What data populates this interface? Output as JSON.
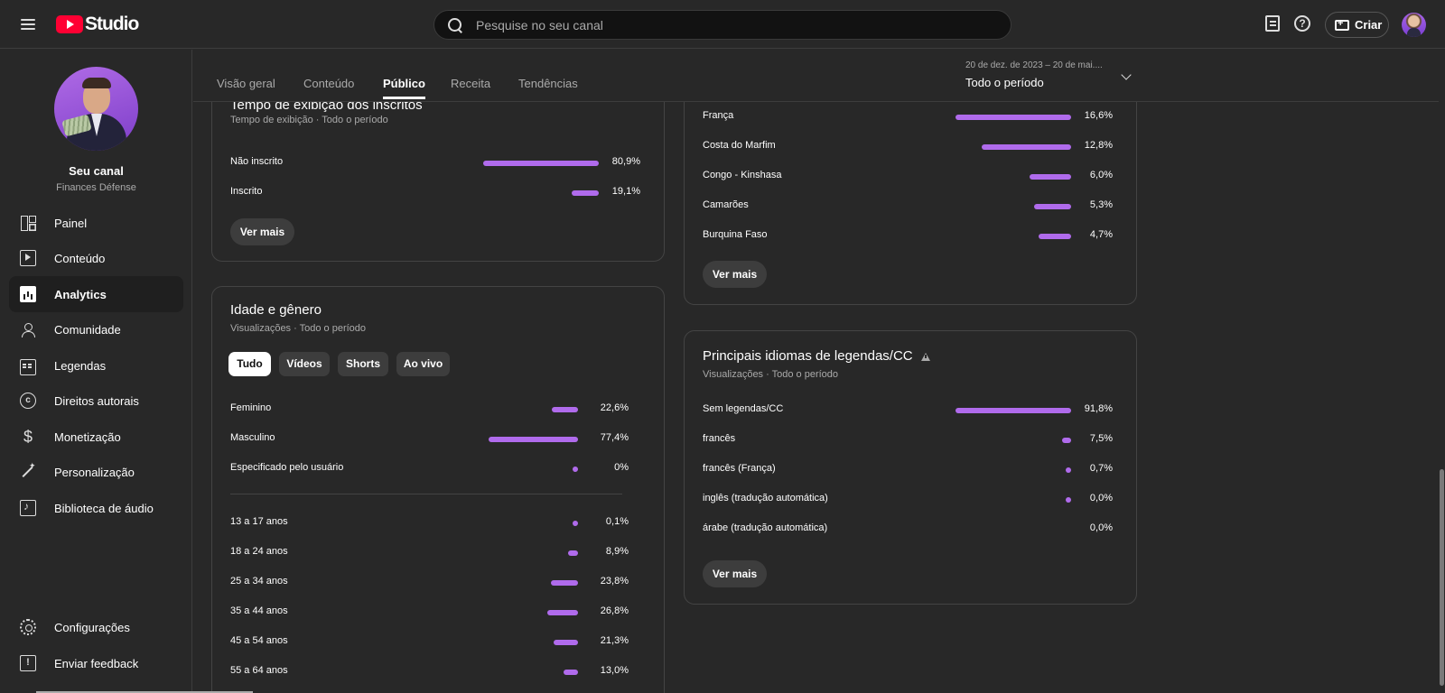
{
  "header": {
    "logo_text": "Studio",
    "search_placeholder": "Pesquise no seu canal",
    "create_label": "Criar",
    "help_glyph": "?"
  },
  "sidebar": {
    "channel_name": "Seu canal",
    "channel_handle": "Finances Défense",
    "items": [
      {
        "label": "Painel",
        "icon": "dashboard-icon"
      },
      {
        "label": "Conteúdo",
        "icon": "content-icon"
      },
      {
        "label": "Analytics",
        "icon": "analytics-icon",
        "active": true
      },
      {
        "label": "Comunidade",
        "icon": "community-icon"
      },
      {
        "label": "Legendas",
        "icon": "subtitles-icon"
      },
      {
        "label": "Direitos autorais",
        "icon": "copyright-icon"
      },
      {
        "label": "Monetização",
        "icon": "monetization-icon"
      },
      {
        "label": "Personalização",
        "icon": "customization-icon"
      },
      {
        "label": "Biblioteca de áudio",
        "icon": "audio-library-icon"
      }
    ],
    "footer": [
      {
        "label": "Configurações",
        "icon": "gear-icon"
      },
      {
        "label": "Enviar feedback",
        "icon": "feedback-icon"
      }
    ]
  },
  "tabs": [
    {
      "label": "Visão geral"
    },
    {
      "label": "Conteúdo"
    },
    {
      "label": "Público",
      "active": true
    },
    {
      "label": "Receita"
    },
    {
      "label": "Tendências"
    }
  ],
  "date_range": {
    "dates": "20 de dez. de 2023 – 20 de mai....",
    "period": "Todo o período"
  },
  "accent_color": "#b06bec",
  "subscriber_watch_time": {
    "title": "Tempo de exibição dos inscritos",
    "subtitle": "Tempo de exibição · Todo o período",
    "rows": [
      {
        "label": "Não inscrito",
        "pct": "80,9%",
        "value": 80.9
      },
      {
        "label": "Inscrito",
        "pct": "19,1%",
        "value": 19.1
      }
    ],
    "more_label": "Ver mais"
  },
  "geography": {
    "rows": [
      {
        "label": "França",
        "pct": "16,6%",
        "value": 16.6
      },
      {
        "label": "Costa do Marfim",
        "pct": "12,8%",
        "value": 12.8
      },
      {
        "label": "Congo - Kinshasa",
        "pct": "6,0%",
        "value": 6.0
      },
      {
        "label": "Camarões",
        "pct": "5,3%",
        "value": 5.3
      },
      {
        "label": "Burquina Faso",
        "pct": "4,7%",
        "value": 4.7
      }
    ],
    "more_label": "Ver mais"
  },
  "age_gender": {
    "title": "Idade e gênero",
    "subtitle": "Visualizações · Todo o período",
    "chips": [
      {
        "label": "Tudo",
        "active": true
      },
      {
        "label": "Vídeos"
      },
      {
        "label": "Shorts"
      },
      {
        "label": "Ao vivo"
      }
    ],
    "gender_rows": [
      {
        "label": "Feminino",
        "pct": "22,6%",
        "value": 22.6
      },
      {
        "label": "Masculino",
        "pct": "77,4%",
        "value": 77.4
      },
      {
        "label": "Especificado pelo usuário",
        "pct": "0%",
        "value": 0
      }
    ],
    "age_rows": [
      {
        "label": "13 a 17 anos",
        "pct": "0,1%",
        "value": 0.1
      },
      {
        "label": "18 a 24 anos",
        "pct": "8,9%",
        "value": 8.9
      },
      {
        "label": "25 a 34 anos",
        "pct": "23,8%",
        "value": 23.8
      },
      {
        "label": "35 a 44 anos",
        "pct": "26,8%",
        "value": 26.8
      },
      {
        "label": "45 a 54 anos",
        "pct": "21,3%",
        "value": 21.3
      },
      {
        "label": "55 a 64 anos",
        "pct": "13,0%",
        "value": 13.0
      }
    ]
  },
  "caption_languages": {
    "title": "Principais idiomas de legendas/CC",
    "subtitle": "Visualizações · Todo o período",
    "rows": [
      {
        "label": "Sem legendas/CC",
        "pct": "91,8%",
        "value": 91.8
      },
      {
        "label": "francês",
        "pct": "7,5%",
        "value": 7.5
      },
      {
        "label": "francês (França)",
        "pct": "0,7%",
        "value": 0.7
      },
      {
        "label": "inglês (tradução automática)",
        "pct": "0,0%",
        "value": 0.0
      },
      {
        "label": "árabe (tradução automática)",
        "pct": "0,0%",
        "value": 0.0,
        "no_bar": true
      }
    ],
    "more_label": "Ver mais"
  }
}
